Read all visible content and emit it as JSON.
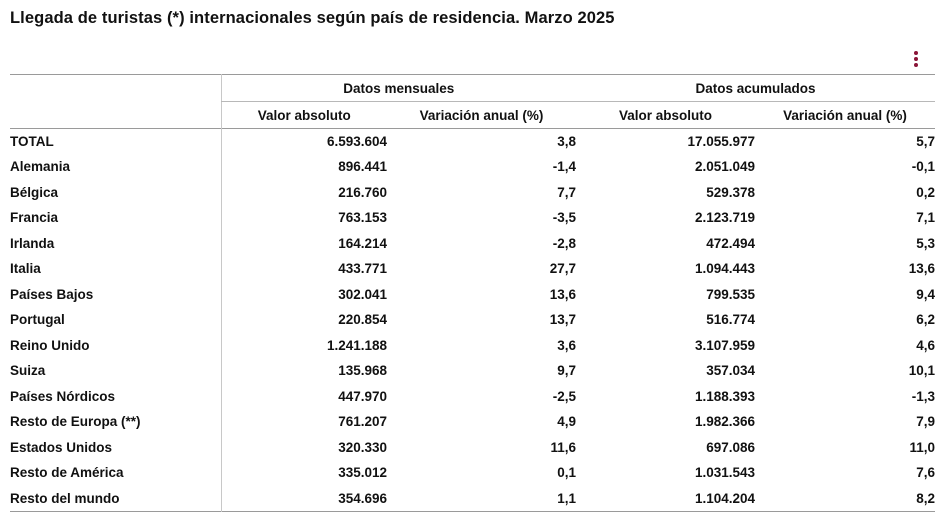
{
  "title": "Llegada de turistas (*) internacionales según país de residencia. Marzo 2025",
  "menu_icon": "vertical-ellipsis-icon",
  "accent_color": "#8a1538",
  "table": {
    "group_headers": {
      "monthly": "Datos mensuales",
      "cumulative": "Datos acumulados"
    },
    "sub_headers": {
      "monthly_abs": "Valor absoluto",
      "monthly_var": "Variación anual (%)",
      "cum_abs": "Valor absoluto",
      "cum_var": "Variación anual (%)"
    },
    "rows": [
      {
        "country": "TOTAL",
        "monthly_abs": "6.593.604",
        "monthly_var": "3,8",
        "cum_abs": "17.055.977",
        "cum_var": "5,7"
      },
      {
        "country": "Alemania",
        "monthly_abs": "896.441",
        "monthly_var": "-1,4",
        "cum_abs": "2.051.049",
        "cum_var": "-0,1"
      },
      {
        "country": "Bélgica",
        "monthly_abs": "216.760",
        "monthly_var": "7,7",
        "cum_abs": "529.378",
        "cum_var": "0,2"
      },
      {
        "country": "Francia",
        "monthly_abs": "763.153",
        "monthly_var": "-3,5",
        "cum_abs": "2.123.719",
        "cum_var": "7,1"
      },
      {
        "country": "Irlanda",
        "monthly_abs": "164.214",
        "monthly_var": "-2,8",
        "cum_abs": "472.494",
        "cum_var": "5,3"
      },
      {
        "country": "Italia",
        "monthly_abs": "433.771",
        "monthly_var": "27,7",
        "cum_abs": "1.094.443",
        "cum_var": "13,6"
      },
      {
        "country": "Países Bajos",
        "monthly_abs": "302.041",
        "monthly_var": "13,6",
        "cum_abs": "799.535",
        "cum_var": "9,4"
      },
      {
        "country": "Portugal",
        "monthly_abs": "220.854",
        "monthly_var": "13,7",
        "cum_abs": "516.774",
        "cum_var": "6,2"
      },
      {
        "country": "Reino Unido",
        "monthly_abs": "1.241.188",
        "monthly_var": "3,6",
        "cum_abs": "3.107.959",
        "cum_var": "4,6"
      },
      {
        "country": "Suiza",
        "monthly_abs": "135.968",
        "monthly_var": "9,7",
        "cum_abs": "357.034",
        "cum_var": "10,1"
      },
      {
        "country": "Países Nórdicos",
        "monthly_abs": "447.970",
        "monthly_var": "-2,5",
        "cum_abs": "1.188.393",
        "cum_var": "-1,3"
      },
      {
        "country": "Resto de Europa (**)",
        "monthly_abs": "761.207",
        "monthly_var": "4,9",
        "cum_abs": "1.982.366",
        "cum_var": "7,9"
      },
      {
        "country": "Estados Unidos",
        "monthly_abs": "320.330",
        "monthly_var": "11,6",
        "cum_abs": "697.086",
        "cum_var": "11,0"
      },
      {
        "country": "Resto de América",
        "monthly_abs": "335.012",
        "monthly_var": "0,1",
        "cum_abs": "1.031.543",
        "cum_var": "7,6"
      },
      {
        "country": "Resto del mundo",
        "monthly_abs": "354.696",
        "monthly_var": "1,1",
        "cum_abs": "1.104.204",
        "cum_var": "8,2"
      }
    ]
  }
}
